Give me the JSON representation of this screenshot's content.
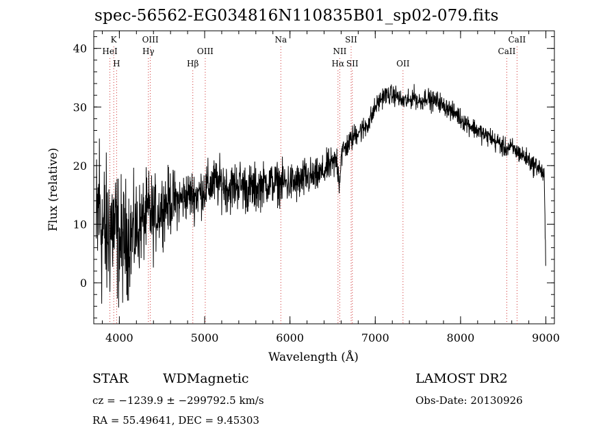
{
  "chart_data": {
    "type": "line",
    "title": "spec-56562-EG034816N110835B01_sp02-079.fits",
    "xlabel": "Wavelength (Å)",
    "ylabel": "Flux (relative)",
    "xlim": [
      3700,
      9100
    ],
    "ylim": [
      -7,
      43
    ],
    "xticks": [
      4000,
      5000,
      6000,
      7000,
      8000,
      9000
    ],
    "yticks": [
      0,
      10,
      20,
      30,
      40
    ],
    "grid": false,
    "series": [
      {
        "x": [
          3730,
          3760,
          3800,
          3850,
          3900,
          3950,
          4000,
          4050,
          4100,
          4150,
          4200,
          4250,
          4300,
          4350,
          4400,
          4450,
          4500,
          4600,
          4700,
          4800,
          4900,
          5000,
          5100,
          5200,
          5300,
          5400,
          5500,
          5600,
          5700,
          5800,
          5900,
          6000,
          6100,
          6200,
          6300,
          6400,
          6450,
          6500,
          6550,
          6580,
          6600,
          6650,
          6700,
          6750,
          6800,
          6850,
          6900,
          6950,
          7000,
          7050,
          7100,
          7150,
          7200,
          7250,
          7300,
          7350,
          7400,
          7450,
          7500,
          7550,
          7600,
          7650,
          7700,
          7750,
          7800,
          7850,
          7900,
          7950,
          8000,
          8100,
          8200,
          8300,
          8350,
          8400,
          8450,
          8500,
          8600,
          8700,
          8800,
          8850,
          8900,
          8950,
          8980,
          8990,
          9000
        ],
        "y": [
          6,
          14,
          9,
          8,
          10,
          9,
          7,
          7,
          8,
          8,
          9,
          10,
          11,
          12,
          11,
          12,
          13,
          14,
          14,
          15,
          15,
          16,
          17,
          17,
          16,
          17,
          16,
          16,
          17,
          17,
          17,
          17,
          17,
          18,
          18,
          19,
          20,
          20,
          21,
          17,
          22,
          23,
          24,
          25,
          26,
          26,
          27,
          28,
          30,
          31,
          32,
          32,
          32,
          32,
          31,
          31,
          31,
          32,
          31,
          31,
          32,
          31,
          31,
          31,
          30,
          30,
          29,
          29,
          28,
          27,
          26,
          25,
          25,
          24,
          24,
          23,
          23,
          22,
          21,
          20,
          20,
          19,
          18,
          10,
          2
        ],
        "noise": [
          12,
          12,
          10,
          9,
          9,
          8,
          8,
          7,
          7,
          6,
          6,
          5,
          5,
          5,
          5,
          4,
          4,
          4,
          3,
          3,
          3,
          3,
          3,
          3,
          3,
          3,
          3,
          3,
          2.5,
          2.5,
          2.5,
          2.5,
          2.5,
          2.5,
          2,
          2,
          2,
          2,
          2,
          2,
          2,
          1.5,
          1.5,
          1.5,
          1.5,
          1.5,
          1.5,
          1.5,
          1.2,
          1.2,
          1.2,
          1.2,
          1.2,
          1.2,
          1.2,
          1.2,
          1.2,
          1.2,
          1.2,
          1.2,
          1.2,
          1.2,
          1.2,
          1.2,
          1.2,
          1.2,
          1.2,
          1.2,
          1.2,
          1.2,
          1.2,
          1.2,
          1.2,
          1.2,
          1.2,
          1.2,
          1.2,
          1.2,
          1.2,
          1.2,
          1.2,
          1.2,
          1.2,
          1.2,
          1.2
        ]
      }
    ],
    "line_markers": [
      {
        "label": "K",
        "x": 3934,
        "row": 1
      },
      {
        "label": "HeI",
        "x": 3889,
        "row": 2
      },
      {
        "label": "H",
        "x": 3968,
        "row": 3
      },
      {
        "label": "OIII",
        "x": 4363,
        "row": 1
      },
      {
        "label": "Hγ",
        "x": 4340,
        "row": 2
      },
      {
        "label": "OIII",
        "x": 5007,
        "row": 2
      },
      {
        "label": "Hβ",
        "x": 4861,
        "row": 3
      },
      {
        "label": "Na",
        "x": 5893,
        "row": 1
      },
      {
        "label": "SII",
        "x": 6717,
        "row": 1
      },
      {
        "label": "NII",
        "x": 6584,
        "row": 2
      },
      {
        "label": "Hα",
        "x": 6563,
        "row": 3
      },
      {
        "label": "SII",
        "x": 6731,
        "row": 3
      },
      {
        "label": "OII",
        "x": 7325,
        "row": 3
      },
      {
        "label": "CaII",
        "x": 8662,
        "row": 1
      },
      {
        "label": "CaII",
        "x": 8542,
        "row": 2
      }
    ],
    "annotations": {
      "object_class": "STAR",
      "subclass": "WDMagnetic",
      "survey": "LAMOST DR2",
      "cz": "cz = −1239.9 ± −299792.5 km/s",
      "obs_date": "Obs-Date: 20130926",
      "coords": "RA =  55.49641, DEC =   9.45303"
    }
  }
}
